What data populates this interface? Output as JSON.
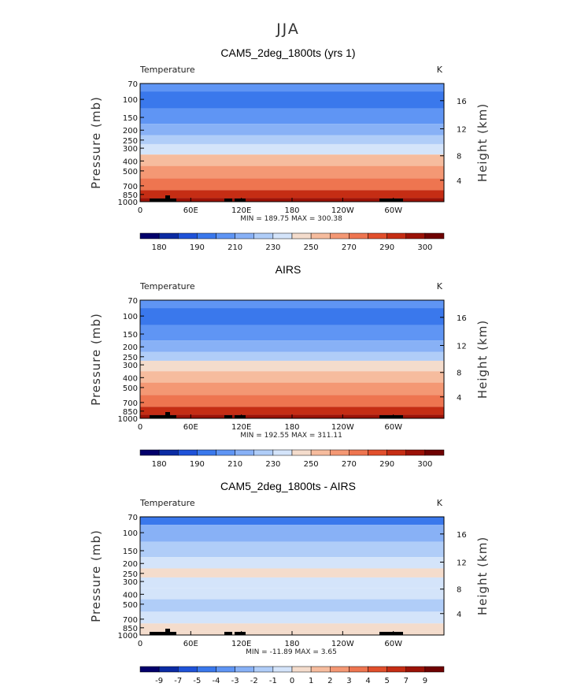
{
  "figure_title": "JJA",
  "chart_data": [
    {
      "type": "heatmap",
      "title": "CAM5_2deg_1800ts (yrs 1)",
      "variable_label": "Temperature",
      "units": "K",
      "ylabel": "Pressure (mb)",
      "ylabel_right": "Height (km)",
      "x_ticks": [
        "0",
        "60E",
        "120E",
        "180",
        "120W",
        "60W"
      ],
      "y_ticks": [
        "70",
        "100",
        "150",
        "200",
        "250",
        "300",
        "400",
        "500",
        "700",
        "850",
        "1000"
      ],
      "right_ticks": [
        "16",
        "12",
        "8",
        "4"
      ],
      "stats_text": "MIN = 189.75   MAX = 300.38",
      "min": 189.75,
      "max": 300.38,
      "colorbar_labels": [
        "180",
        "190",
        "210",
        "230",
        "250",
        "270",
        "290",
        "300"
      ],
      "colorbar_colors": [
        "#03006b",
        "#0b2ba3",
        "#1f52d8",
        "#3a78ec",
        "#5f95f4",
        "#88b1f6",
        "#b0cdf8",
        "#d4e4fa",
        "#f4dccc",
        "#f6bc9e",
        "#f49874",
        "#ee7550",
        "#e14f2c",
        "#c52d14",
        "#9b1207",
        "#6f0202"
      ],
      "profile_levels": [
        {
          "p": "70",
          "band": 4
        },
        {
          "p": "100",
          "band": 3
        },
        {
          "p": "150",
          "band": 4
        },
        {
          "p": "200",
          "band": 5
        },
        {
          "p": "250",
          "band": 6
        },
        {
          "p": "300",
          "band": 7
        },
        {
          "p": "400",
          "band": 9
        },
        {
          "p": "500",
          "band": 10
        },
        {
          "p": "700",
          "band": 11
        },
        {
          "p": "850",
          "band": 13
        },
        {
          "p": "1000",
          "band": 14
        }
      ]
    },
    {
      "type": "heatmap",
      "title": "AIRS",
      "variable_label": "Temperature",
      "units": "K",
      "ylabel": "Pressure (mb)",
      "ylabel_right": "Height (km)",
      "x_ticks": [
        "0",
        "60E",
        "120E",
        "180",
        "120W",
        "60W"
      ],
      "y_ticks": [
        "70",
        "100",
        "150",
        "200",
        "250",
        "300",
        "400",
        "500",
        "700",
        "850",
        "1000"
      ],
      "right_ticks": [
        "16",
        "12",
        "8",
        "4"
      ],
      "stats_text": "MIN = 192.55   MAX = 311.11",
      "min": 192.55,
      "max": 311.11,
      "colorbar_labels": [
        "180",
        "190",
        "210",
        "230",
        "250",
        "270",
        "290",
        "300"
      ],
      "colorbar_colors": [
        "#03006b",
        "#0b2ba3",
        "#1f52d8",
        "#3a78ec",
        "#5f95f4",
        "#88b1f6",
        "#b0cdf8",
        "#d4e4fa",
        "#f4dccc",
        "#f6bc9e",
        "#f49874",
        "#ee7550",
        "#e14f2c",
        "#c52d14",
        "#9b1207",
        "#6f0202"
      ],
      "profile_levels": [
        {
          "p": "70",
          "band": 4
        },
        {
          "p": "100",
          "band": 3
        },
        {
          "p": "150",
          "band": 4
        },
        {
          "p": "200",
          "band": 5
        },
        {
          "p": "250",
          "band": 6
        },
        {
          "p": "300",
          "band": 8
        },
        {
          "p": "400",
          "band": 9
        },
        {
          "p": "500",
          "band": 10
        },
        {
          "p": "700",
          "band": 11
        },
        {
          "p": "850",
          "band": 13
        },
        {
          "p": "1000",
          "band": 14
        }
      ]
    },
    {
      "type": "heatmap",
      "title": "CAM5_2deg_1800ts - AIRS",
      "variable_label": "Temperature",
      "units": "K",
      "ylabel": "Pressure (mb)",
      "ylabel_right": "Height (km)",
      "x_ticks": [
        "0",
        "60E",
        "120E",
        "180",
        "120W",
        "60W"
      ],
      "y_ticks": [
        "70",
        "100",
        "150",
        "200",
        "250",
        "300",
        "400",
        "500",
        "700",
        "850",
        "1000"
      ],
      "right_ticks": [
        "16",
        "12",
        "8",
        "4"
      ],
      "stats_text": "MIN = -11.89   MAX =    3.65",
      "min": -11.89,
      "max": 3.65,
      "colorbar_labels": [
        "-9",
        "-7",
        "-5",
        "-4",
        "-3",
        "-2",
        "-1",
        "0",
        "1",
        "2",
        "3",
        "4",
        "5",
        "7",
        "9"
      ],
      "colorbar_colors": [
        "#03006b",
        "#0b2ba3",
        "#1f52d8",
        "#3a78ec",
        "#5f95f4",
        "#88b1f6",
        "#b0cdf8",
        "#d4e4fa",
        "#f4dccc",
        "#f6bc9e",
        "#f49874",
        "#ee7550",
        "#e14f2c",
        "#c52d14",
        "#9b1207",
        "#6f0202"
      ],
      "profile_levels": [
        {
          "p": "70",
          "band": 3
        },
        {
          "p": "100",
          "band": 5
        },
        {
          "p": "150",
          "band": 6
        },
        {
          "p": "200",
          "band": 7
        },
        {
          "p": "250",
          "band": 8
        },
        {
          "p": "300",
          "band": 7
        },
        {
          "p": "400",
          "band": 7
        },
        {
          "p": "500",
          "band": 6
        },
        {
          "p": "700",
          "band": 7
        },
        {
          "p": "850",
          "band": 8
        },
        {
          "p": "1000",
          "band": 8
        }
      ]
    }
  ]
}
